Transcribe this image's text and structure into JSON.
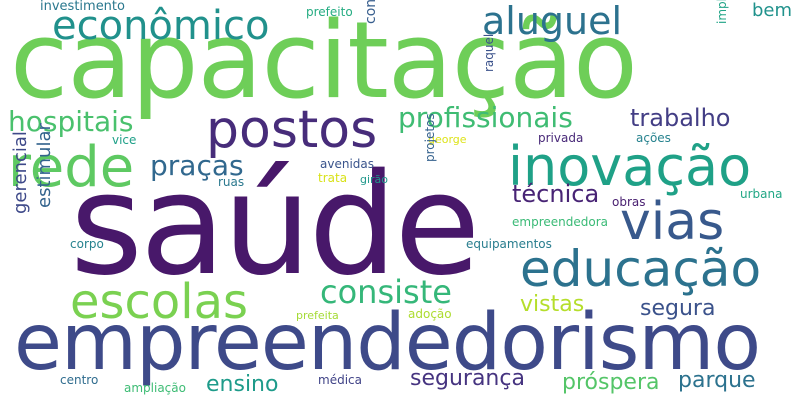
{
  "words": [
    {
      "text": "capacitação",
      "color": "#6ece58"
    },
    {
      "text": "saúde",
      "color": "#48186a"
    },
    {
      "text": "empreendedorismo",
      "color": "#3e4a89"
    },
    {
      "text": "inovação",
      "color": "#1fa187"
    },
    {
      "text": "educação",
      "color": "#2c728e"
    },
    {
      "text": "postos",
      "color": "#472c7a"
    },
    {
      "text": "rede",
      "color": "#5ec962"
    },
    {
      "text": "vias",
      "color": "#38598c"
    },
    {
      "text": "escolas",
      "color": "#7ad151"
    },
    {
      "text": "econômico",
      "color": "#21918c"
    },
    {
      "text": "consiste",
      "color": "#35b779"
    },
    {
      "text": "aluguel",
      "color": "#2c728e"
    },
    {
      "text": "profissionais",
      "color": "#3fbc73"
    },
    {
      "text": "hospitais",
      "color": "#4ac16d"
    },
    {
      "text": "trabalho",
      "color": "#433e85"
    },
    {
      "text": "praças",
      "color": "#31688e"
    },
    {
      "text": "técnica",
      "color": "#482475"
    },
    {
      "text": "segurança",
      "color": "#463480"
    },
    {
      "text": "próspera",
      "color": "#54c568"
    },
    {
      "text": "parque",
      "color": "#2c728e"
    },
    {
      "text": "ensino",
      "color": "#1e9b8a"
    },
    {
      "text": "vistas",
      "color": "#b5de2b"
    },
    {
      "text": "segura",
      "color": "#3b528b"
    },
    {
      "text": "bem",
      "color": "#20928c"
    },
    {
      "text": "gerencial",
      "color": "#3e4989"
    },
    {
      "text": "estimular",
      "color": "#33638d"
    },
    {
      "text": "investimento",
      "color": "#2a788e"
    },
    {
      "text": "prefeito",
      "color": "#25ac82"
    },
    {
      "text": "contratação",
      "color": "#365d8d"
    },
    {
      "text": "raquel",
      "color": "#3b528b"
    },
    {
      "text": "implantação",
      "color": "#20a486"
    },
    {
      "text": "vice",
      "color": "#1fa088"
    },
    {
      "text": "george",
      "color": "#dde318"
    },
    {
      "text": "privada",
      "color": "#482878"
    },
    {
      "text": "ações",
      "color": "#26828e"
    },
    {
      "text": "avenidas",
      "color": "#3a548c"
    },
    {
      "text": "trata",
      "color": "#d8e219"
    },
    {
      "text": "girão",
      "color": "#1f988b"
    },
    {
      "text": "ruas",
      "color": "#2a788e"
    },
    {
      "text": "projetos",
      "color": "#34618d"
    },
    {
      "text": "obras",
      "color": "#481f70"
    },
    {
      "text": "urbana",
      "color": "#22a785"
    },
    {
      "text": "empreendedora",
      "color": "#3aba76"
    },
    {
      "text": "corpo",
      "color": "#26828e"
    },
    {
      "text": "equipamentos",
      "color": "#287d8e"
    },
    {
      "text": "prefeita",
      "color": "#a5db36"
    },
    {
      "text": "adoção",
      "color": "#addc30"
    },
    {
      "text": "centro",
      "color": "#2f6c8e"
    },
    {
      "text": "ampliação",
      "color": "#3dbc74"
    },
    {
      "text": "médica",
      "color": "#404387"
    }
  ]
}
